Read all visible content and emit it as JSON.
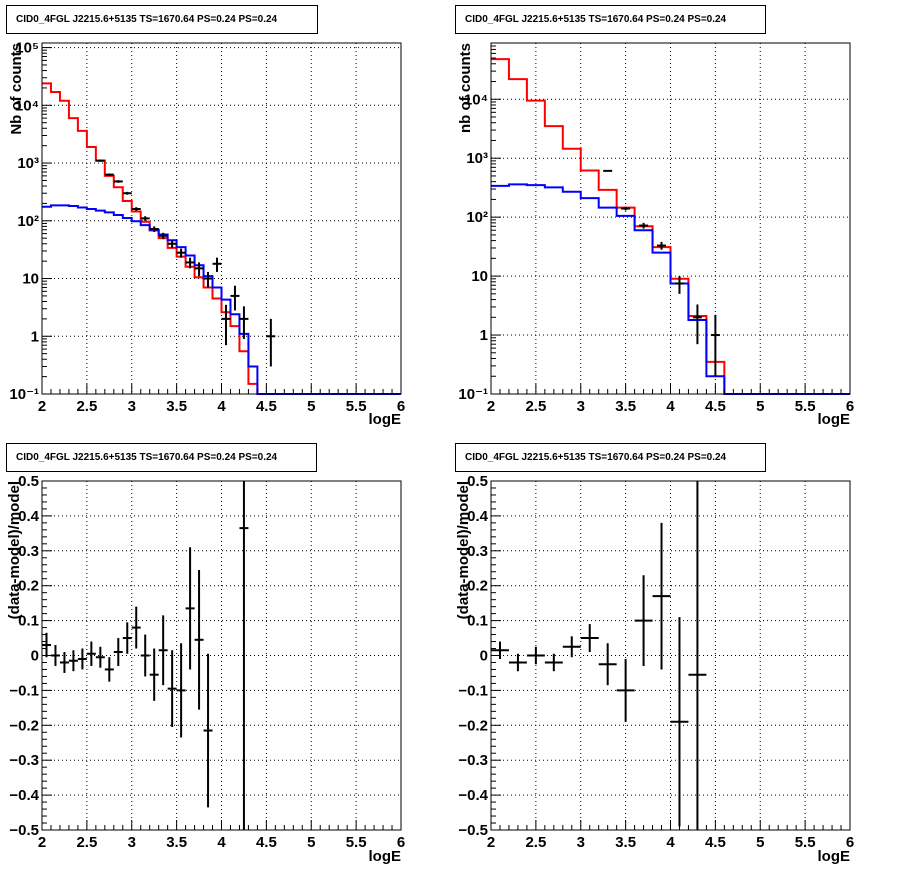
{
  "chart_data": [
    {
      "type": "line",
      "title": "CID0_4FGL J2215.6+5135 TS=1670.64 PS=0.24 PS=0.24",
      "xlabel": "logE",
      "ylabel": "Nb of counts",
      "xlim": [
        2,
        6
      ],
      "ylim": [
        0.1,
        120000
      ],
      "yscale": "log",
      "grid": true,
      "x_ticks": [
        "2",
        "2.5",
        "3",
        "3.5",
        "4",
        "4.5",
        "5",
        "5.5",
        "6"
      ],
      "y_ticks": [
        {
          "v": 0.1,
          "label": "10⁻¹"
        },
        {
          "v": 1,
          "label": "1"
        },
        {
          "v": 10,
          "label": "10"
        },
        {
          "v": 100,
          "label": "10²"
        },
        {
          "v": 1000,
          "label": "10³"
        },
        {
          "v": 10000,
          "label": "10⁴"
        },
        {
          "v": 100000,
          "label": "10⁵"
        }
      ],
      "series": [
        {
          "kind": "hist",
          "color": "#ff0000",
          "edges": [
            2,
            2.1,
            2.2,
            2.3,
            2.4,
            2.5,
            2.6,
            2.7,
            2.8,
            2.9,
            3.0,
            3.1,
            3.2,
            3.3,
            3.4,
            3.5,
            3.6,
            3.7,
            3.8,
            3.9,
            4.0,
            4.1,
            4.2,
            4.3,
            4.4,
            4.5,
            4.6,
            4.7,
            4.8,
            4.9,
            5.0,
            5.1,
            5.2,
            5.3,
            5.4,
            5.5,
            5.6,
            5.7,
            5.8,
            5.9,
            6.0
          ],
          "values": [
            24000,
            17000,
            12000,
            6000,
            3600,
            1900,
            1100,
            600,
            380,
            220,
            145,
            96,
            68,
            50,
            34,
            24,
            16,
            10.5,
            7,
            4.5,
            2.6,
            1.5,
            0.55,
            0.15,
            0,
            0,
            0,
            0,
            0,
            0,
            0,
            0,
            0,
            0,
            0,
            0,
            0,
            0,
            0,
            0
          ]
        },
        {
          "kind": "hist",
          "color": "#0000ff",
          "edges": [
            2,
            2.1,
            2.2,
            2.3,
            2.4,
            2.5,
            2.6,
            2.7,
            2.8,
            2.9,
            3.0,
            3.1,
            3.2,
            3.3,
            3.4,
            3.5,
            3.6,
            3.7,
            3.8,
            3.9,
            4.0,
            4.1,
            4.2,
            4.3,
            4.4,
            4.5,
            4.6,
            4.7,
            4.8,
            4.9,
            5.0,
            5.1,
            5.2,
            5.3,
            5.4,
            5.5,
            5.6,
            5.7,
            5.8,
            5.9,
            6.0
          ],
          "values": [
            175,
            185,
            185,
            180,
            170,
            160,
            150,
            140,
            126,
            112,
            98,
            84,
            70,
            58,
            46,
            35,
            25,
            17,
            11,
            7,
            4.3,
            2.4,
            1.1,
            0.3,
            0.1,
            0.1,
            0.1,
            0.1,
            0.1,
            0.1,
            0.1,
            0.1,
            0.1,
            0.1,
            0.1,
            0.1,
            0.1,
            0.1,
            0.1,
            0.1
          ]
        },
        {
          "kind": "points",
          "color": "#000000",
          "x": [
            2.65,
            2.75,
            2.85,
            2.95,
            3.05,
            3.15,
            3.25,
            3.35,
            3.45,
            3.55,
            3.65,
            3.75,
            3.85,
            3.95,
            4.05,
            4.15,
            4.25,
            4.55
          ],
          "y": [
            1100,
            630,
            480,
            300,
            160,
            110,
            72,
            55,
            40,
            28,
            19,
            15,
            10,
            18,
            2,
            5,
            2,
            1
          ],
          "ylo": [
            1050,
            600,
            455,
            283,
            148,
            100,
            64,
            48,
            34,
            23,
            15,
            11,
            7,
            13,
            0.7,
            2.8,
            0.9,
            0.3
          ],
          "yhi": [
            1150,
            660,
            505,
            317,
            172,
            120,
            80,
            62,
            46,
            33,
            23,
            19,
            13,
            23,
            3.5,
            7.5,
            3.3,
            2
          ]
        }
      ]
    },
    {
      "type": "line",
      "title": "CID0_4FGL J2215.6+5135 TS=1670.64 PS=0.24 PS=0.24",
      "xlabel": "logE",
      "ylabel": "nb of counts",
      "xlim": [
        2,
        6
      ],
      "ylim": [
        0.1,
        90000
      ],
      "yscale": "log",
      "grid": true,
      "x_ticks": [
        "2",
        "2.5",
        "3",
        "3.5",
        "4",
        "4.5",
        "5",
        "5.5",
        "6"
      ],
      "y_ticks": [
        {
          "v": 0.1,
          "label": "10⁻¹"
        },
        {
          "v": 1,
          "label": "1"
        },
        {
          "v": 10,
          "label": "10"
        },
        {
          "v": 100,
          "label": "10²"
        },
        {
          "v": 1000,
          "label": "10³"
        },
        {
          "v": 10000,
          "label": "10⁴"
        }
      ],
      "series": [
        {
          "kind": "hist",
          "color": "#ff0000",
          "edges": [
            2,
            2.2,
            2.4,
            2.6,
            2.8,
            3.0,
            3.2,
            3.4,
            3.6,
            3.8,
            4.0,
            4.2,
            4.4,
            4.6,
            4.8,
            5.0,
            5.2,
            5.4,
            5.6,
            5.8,
            6.0
          ],
          "values": [
            48000,
            22000,
            9500,
            3500,
            1450,
            620,
            290,
            145,
            70,
            31,
            9,
            2.1,
            0.35,
            0,
            0,
            0,
            0,
            0,
            0,
            0
          ]
        },
        {
          "kind": "hist",
          "color": "#0000ff",
          "edges": [
            2,
            2.2,
            2.4,
            2.6,
            2.8,
            3.0,
            3.2,
            3.4,
            3.6,
            3.8,
            4.0,
            4.2,
            4.4,
            4.6,
            4.8,
            5.0,
            5.2,
            5.4,
            5.6,
            5.8,
            6.0
          ],
          "values": [
            340,
            360,
            350,
            320,
            270,
            210,
            145,
            105,
            60,
            25,
            7.5,
            1.8,
            0.2,
            0.1,
            0.1,
            0.1,
            0.1,
            0.1,
            0.1,
            0.1
          ]
        },
        {
          "kind": "points",
          "color": "#000000",
          "x": [
            3.3,
            3.5,
            3.7,
            3.9,
            4.1,
            4.3,
            4.5
          ],
          "y": [
            610,
            140,
            72,
            33,
            7.5,
            2,
            1
          ],
          "ylo": [
            590,
            130,
            64,
            28,
            5,
            0.7,
            0.2
          ],
          "yhi": [
            630,
            150,
            80,
            38,
            10,
            3.3,
            2.2
          ]
        }
      ]
    },
    {
      "type": "scatter",
      "title": "CID0_4FGL J2215.6+5135 TS=1670.64 PS=0.24 PS=0.24",
      "xlabel": "logE",
      "ylabel": "(data-model)/model",
      "xlim": [
        2,
        6
      ],
      "ylim": [
        -0.5,
        0.5
      ],
      "grid": true,
      "x_ticks": [
        "2",
        "2.5",
        "3",
        "3.5",
        "4",
        "4.5",
        "5",
        "5.5",
        "6"
      ],
      "y_ticks": [
        "−0.5",
        "−0.4",
        "−0.3",
        "−0.2",
        "−0.1",
        "0",
        "0.1",
        "0.2",
        "0.3",
        "0.4",
        "0.5"
      ],
      "points": {
        "x": [
          2.05,
          2.15,
          2.25,
          2.35,
          2.45,
          2.55,
          2.65,
          2.75,
          2.85,
          2.95,
          3.05,
          3.15,
          3.25,
          3.35,
          3.45,
          3.55,
          3.65,
          3.75,
          3.85,
          4.25
        ],
        "y": [
          0.03,
          0.0,
          -0.02,
          -0.015,
          -0.01,
          0.005,
          -0.005,
          -0.04,
          0.01,
          0.05,
          0.08,
          0.0,
          -0.055,
          0.015,
          -0.095,
          -0.1,
          0.135,
          0.045,
          -0.215,
          0.365
        ],
        "err": [
          0.035,
          0.03,
          0.03,
          0.03,
          0.03,
          0.035,
          0.03,
          0.035,
          0.04,
          0.045,
          0.06,
          0.06,
          0.075,
          0.1,
          0.11,
          0.135,
          0.175,
          0.2,
          0.22,
          0.9
        ]
      }
    },
    {
      "type": "scatter",
      "title": "CID0_4FGL J2215.6+5135 TS=1670.64 PS=0.24 PS=0.24",
      "xlabel": "logE",
      "ylabel": "(data-model)/model",
      "xlim": [
        2,
        6
      ],
      "ylim": [
        -0.5,
        0.5
      ],
      "grid": true,
      "x_ticks": [
        "2",
        "2.5",
        "3",
        "3.5",
        "4",
        "4.5",
        "5",
        "5.5",
        "6"
      ],
      "y_ticks": [
        "−0.5",
        "−0.4",
        "−0.3",
        "−0.2",
        "−0.1",
        "0",
        "0.1",
        "0.2",
        "0.3",
        "0.4",
        "0.5"
      ],
      "points": {
        "x": [
          2.1,
          2.3,
          2.5,
          2.7,
          2.9,
          3.1,
          3.3,
          3.5,
          3.7,
          3.9,
          4.1,
          4.3
        ],
        "y": [
          0.015,
          -0.02,
          0.0,
          -0.02,
          0.025,
          0.05,
          -0.025,
          -0.1,
          0.1,
          0.17,
          -0.19,
          -0.055
        ],
        "err": [
          0.025,
          0.025,
          0.025,
          0.025,
          0.03,
          0.04,
          0.06,
          0.09,
          0.13,
          0.21,
          0.3,
          0.9
        ]
      }
    }
  ]
}
